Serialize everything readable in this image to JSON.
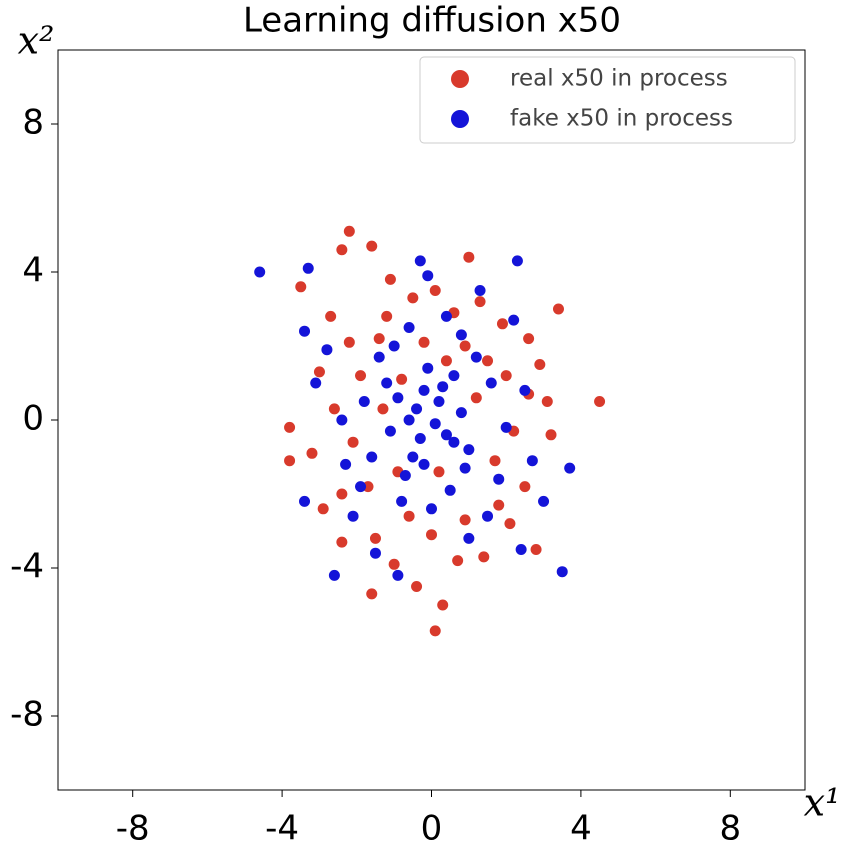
{
  "chart_data": {
    "type": "scatter",
    "title": "Learning diffusion x50",
    "xlabel": "x¹",
    "ylabel": "x²",
    "xlim": [
      -10,
      10
    ],
    "ylim": [
      -10,
      10
    ],
    "xticks": [
      -8,
      -4,
      0,
      4,
      8
    ],
    "yticks": [
      -8,
      -4,
      0,
      4,
      8
    ],
    "legend": "upper right",
    "series": [
      {
        "name": "real x50 in process",
        "color": "#d83a2c",
        "x": [
          4.5,
          0.1,
          -2.2,
          -3.8,
          -3.8,
          3.4,
          0.3,
          -1.6,
          2.8,
          -2.4,
          -1.6,
          -3.5,
          1.0,
          -1.1,
          0.1,
          1.9,
          2.9,
          2.6,
          3.2,
          3.1,
          2.5,
          2.1,
          1.4,
          -0.4,
          -1.0,
          -2.4,
          -2.9,
          -3.2,
          -2.6,
          -3.0,
          -2.2,
          -1.2,
          0.6,
          1.5,
          -0.2,
          0.9,
          -0.6,
          1.7,
          -1.7,
          -1.9,
          0.4,
          1.2,
          -1.3,
          0.2,
          -0.8,
          2.2,
          -2.1,
          0.7,
          -0.5,
          1.3,
          -1.5,
          2.6,
          -2.7,
          0.0,
          1.8,
          -0.9,
          0.9,
          -1.4,
          2.0,
          -2.4
        ],
        "y": [
          0.5,
          -5.7,
          5.1,
          -1.1,
          -0.2,
          3.0,
          -5.0,
          -4.7,
          -3.5,
          4.6,
          4.7,
          3.6,
          4.4,
          3.8,
          3.5,
          2.6,
          1.5,
          0.7,
          -0.4,
          0.5,
          -1.8,
          -2.8,
          -3.7,
          -4.5,
          -3.9,
          -3.3,
          -2.4,
          -0.9,
          0.3,
          1.3,
          2.1,
          2.8,
          2.9,
          1.6,
          2.1,
          -2.7,
          -2.6,
          -1.1,
          -1.8,
          1.2,
          1.6,
          0.6,
          0.3,
          -1.4,
          1.1,
          -0.3,
          -0.6,
          -3.8,
          3.3,
          3.2,
          -3.2,
          2.2,
          2.8,
          -3.1,
          -2.3,
          -1.4,
          2.0,
          2.2,
          1.2,
          -2.0
        ]
      },
      {
        "name": "fake x50 in process",
        "color": "#1414d8",
        "x": [
          -4.6,
          -2.6,
          3.5,
          3.7,
          2.3,
          -3.4,
          -3.4,
          -3.3,
          -0.3,
          -0.1,
          1.3,
          2.2,
          -2.8,
          -3.1,
          -2.3,
          2.7,
          3.0,
          2.4,
          -0.9,
          -1.5,
          -2.1,
          1.0,
          0.0,
          1.8,
          -1.6,
          -1.8,
          -1.4,
          -0.6,
          0.8,
          1.6,
          2.0,
          0.5,
          -0.7,
          -0.4,
          0.2,
          -0.3,
          0.4,
          -0.9,
          0.6,
          -0.1,
          -1.1,
          1.0,
          -0.5,
          0.1,
          -0.6,
          0.3,
          -0.2,
          0.8,
          -1.2,
          1.2,
          -0.8,
          0.9,
          -1.9,
          2.5,
          -2.4,
          0.4,
          -1.0,
          1.5,
          -0.2,
          0.6
        ],
        "y": [
          4.0,
          -4.2,
          -4.1,
          -1.3,
          4.3,
          2.4,
          -2.2,
          4.1,
          4.3,
          3.9,
          3.5,
          2.7,
          1.9,
          1.0,
          -1.2,
          -1.1,
          -2.2,
          -3.5,
          -4.2,
          -3.6,
          -2.6,
          -3.2,
          -2.4,
          -1.6,
          -1.0,
          0.5,
          1.7,
          2.5,
          2.3,
          1.0,
          -0.2,
          -1.9,
          -1.5,
          0.3,
          0.5,
          -0.5,
          -0.4,
          0.6,
          1.2,
          1.4,
          -0.3,
          -0.8,
          -1.0,
          -0.1,
          0.0,
          0.9,
          -1.2,
          0.2,
          1.0,
          1.7,
          -2.2,
          -1.3,
          -1.8,
          0.8,
          0.0,
          2.8,
          2.0,
          -2.6,
          0.8,
          -0.6
        ]
      }
    ]
  }
}
